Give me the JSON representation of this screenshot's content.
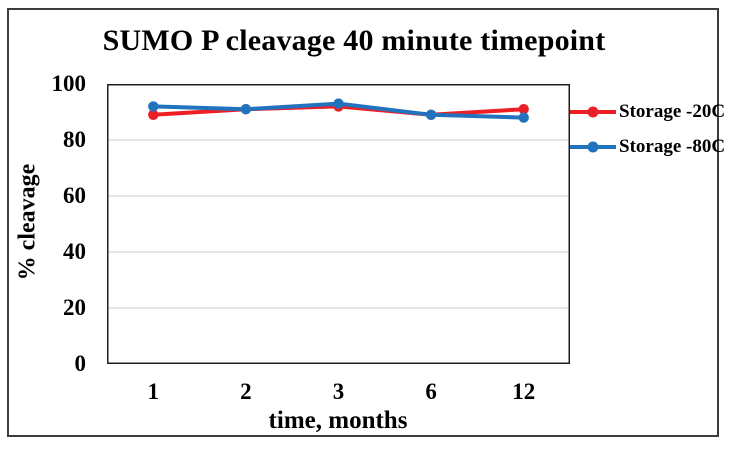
{
  "chart_data": {
    "type": "line",
    "title": "SUMO P cleavage 40 minute timepoint",
    "xlabel": "time, months",
    "ylabel": "% cleavage",
    "categories": [
      "1",
      "2",
      "3",
      "6",
      "12"
    ],
    "series": [
      {
        "name": "Storage -20C",
        "color": "#ed1f24",
        "values": [
          89,
          91,
          92,
          89,
          91
        ]
      },
      {
        "name": "Storage -80C",
        "color": "#2273be",
        "values": [
          92,
          91,
          93,
          89,
          88
        ]
      }
    ],
    "ylim": [
      0,
      100
    ],
    "yticks": [
      0,
      20,
      40,
      60,
      80,
      100
    ],
    "grid": true,
    "legend_position": "right",
    "marker": "circle"
  },
  "colors": {
    "grid": "#d4d4d4",
    "plot_border": "#1f1f1f",
    "frame_border": "#3c3c3c",
    "text": "#000000",
    "background": "#ffffff"
  }
}
